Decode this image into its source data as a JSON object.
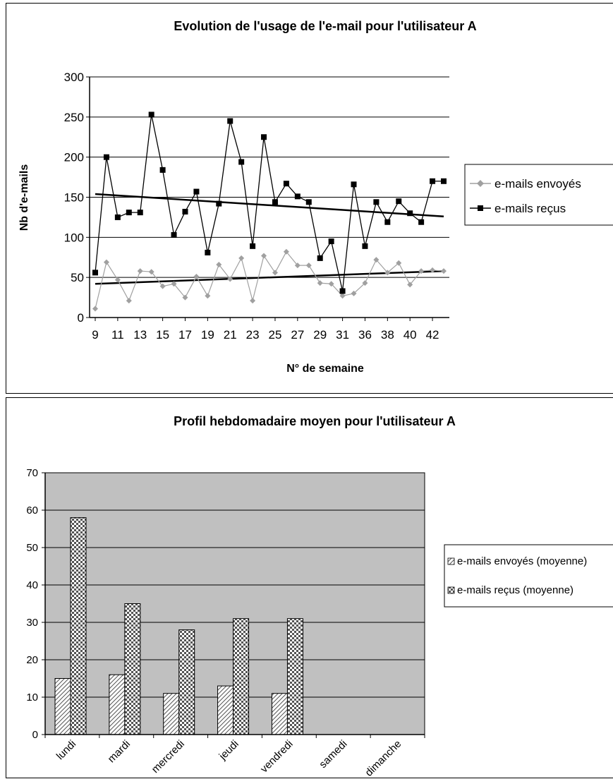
{
  "chart_data": [
    {
      "type": "line",
      "title": "Evolution de l'usage de l'e-mail pour l'utilisateur A",
      "xlabel": "N° de semaine",
      "ylabel": "Nb d'e-mails",
      "ylim": [
        0,
        300
      ],
      "yticks": [
        "0",
        "50",
        "100",
        "150",
        "200",
        "250",
        "300"
      ],
      "xtick_labels": [
        "9",
        "11",
        "13",
        "15",
        "17",
        "19",
        "21",
        "23",
        "25",
        "27",
        "29",
        "31",
        "36",
        "38",
        "40",
        "42"
      ],
      "x": [
        "9",
        "10",
        "11",
        "12",
        "13",
        "14",
        "15",
        "16",
        "17",
        "18",
        "19",
        "20",
        "21",
        "22",
        "23",
        "24",
        "25",
        "26",
        "27",
        "28",
        "29",
        "30",
        "31",
        "34",
        "35",
        "36",
        "37",
        "38",
        "39",
        "40",
        "41",
        "42"
      ],
      "grid": "horizontal",
      "legend": "right",
      "series": [
        {
          "name": "e-mails envoyés",
          "color": "#a0a0a0",
          "marker": "diamond",
          "values": [
            11,
            69,
            47,
            21,
            58,
            57,
            39,
            42,
            25,
            51,
            27,
            66,
            48,
            74,
            21,
            77,
            56,
            82,
            65,
            65,
            43,
            42,
            27,
            30,
            43,
            72,
            56,
            68,
            41,
            58,
            59,
            58
          ],
          "trend": [
            42,
            58
          ]
        },
        {
          "name": "e-mails reçus",
          "color": "#000000",
          "marker": "square",
          "values": [
            56,
            200,
            125,
            131,
            131,
            253,
            184,
            103,
            132,
            157,
            81,
            142,
            245,
            194,
            89,
            225,
            144,
            167,
            151,
            144,
            74,
            95,
            33,
            166,
            89,
            144,
            119,
            145,
            130,
            119,
            170,
            170
          ],
          "trend": [
            154,
            126
          ]
        }
      ]
    },
    {
      "type": "bar",
      "title": "Profil hebdomadaire moyen pour l'utilisateur A",
      "categories": [
        "lundi",
        "mardi",
        "mercredi",
        "jeudi",
        "vendredi",
        "samedi",
        "dimanche"
      ],
      "ylim": [
        0,
        70
      ],
      "yticks": [
        "0",
        "10",
        "20",
        "30",
        "40",
        "50",
        "60",
        "70"
      ],
      "grid": "horizontal",
      "legend": "right",
      "plot_background": "#c0c0c0",
      "series": [
        {
          "name": "e-mails envoyés (moyenne)",
          "pattern": "diagonal-hatch",
          "values": [
            15,
            16,
            11,
            13,
            11,
            0,
            0
          ]
        },
        {
          "name": "e-mails reçus (moyenne)",
          "pattern": "checker",
          "values": [
            58,
            35,
            28,
            31,
            31,
            0,
            0
          ]
        }
      ]
    }
  ]
}
